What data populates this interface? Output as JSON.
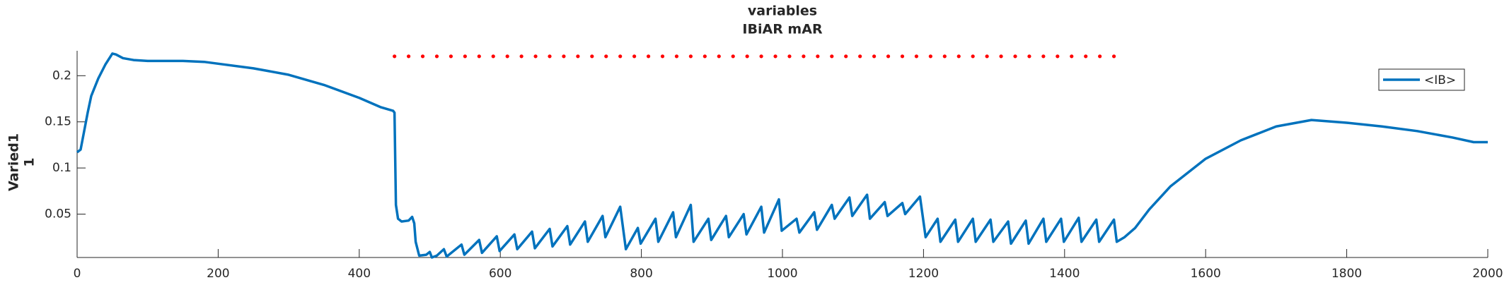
{
  "chart_data": {
    "type": "line",
    "title": [
      "variables",
      "IBiAR mAR"
    ],
    "ylabel": [
      "Varied1",
      "1"
    ],
    "xlim": [
      0,
      2000
    ],
    "ylim": [
      0.003,
      0.227
    ],
    "xticks": [
      0,
      200,
      400,
      600,
      800,
      1000,
      1200,
      1400,
      1600,
      1800,
      2000
    ],
    "yticks": [
      0.05,
      0.1,
      0.15,
      0.2
    ],
    "legend": "upper right",
    "series": [
      {
        "name": "<IB>",
        "color": "#0072bd",
        "style": "line",
        "x": [
          0,
          5,
          10,
          15,
          20,
          30,
          40,
          50,
          55,
          65,
          80,
          100,
          150,
          180,
          200,
          250,
          300,
          350,
          400,
          430,
          448,
          450,
          452,
          455,
          460,
          470,
          475,
          478,
          480,
          485,
          495,
          500,
          503,
          510,
          520,
          524,
          545,
          549,
          570,
          574,
          595,
          599,
          620,
          624,
          645,
          649,
          670,
          674,
          695,
          699,
          720,
          724,
          745,
          749,
          770,
          778,
          795,
          799,
          820,
          824,
          845,
          849,
          870,
          874,
          895,
          899,
          920,
          924,
          945,
          949,
          970,
          974,
          995,
          999,
          1020,
          1024,
          1045,
          1049,
          1070,
          1074,
          1095,
          1099,
          1120,
          1124,
          1145,
          1149,
          1170,
          1174,
          1195,
          1203,
          1220,
          1224,
          1245,
          1249,
          1270,
          1274,
          1295,
          1299,
          1320,
          1324,
          1345,
          1349,
          1370,
          1374,
          1395,
          1399,
          1420,
          1424,
          1445,
          1449,
          1470,
          1474,
          1485,
          1500,
          1520,
          1550,
          1600,
          1650,
          1700,
          1750,
          1800,
          1850,
          1900,
          1950,
          1980,
          2000
        ],
        "values": [
          0.117,
          0.12,
          0.14,
          0.16,
          0.178,
          0.197,
          0.212,
          0.224,
          0.223,
          0.219,
          0.217,
          0.216,
          0.216,
          0.215,
          0.213,
          0.208,
          0.201,
          0.19,
          0.176,
          0.166,
          0.162,
          0.16,
          0.06,
          0.045,
          0.042,
          0.043,
          0.047,
          0.04,
          0.02,
          0.005,
          0.006,
          0.009,
          0.003,
          0.005,
          0.012,
          0.004,
          0.017,
          0.006,
          0.022,
          0.008,
          0.026,
          0.01,
          0.028,
          0.012,
          0.031,
          0.013,
          0.034,
          0.015,
          0.037,
          0.017,
          0.042,
          0.02,
          0.048,
          0.025,
          0.058,
          0.012,
          0.035,
          0.018,
          0.045,
          0.02,
          0.052,
          0.025,
          0.06,
          0.02,
          0.045,
          0.022,
          0.048,
          0.025,
          0.05,
          0.028,
          0.058,
          0.03,
          0.066,
          0.032,
          0.045,
          0.03,
          0.052,
          0.033,
          0.06,
          0.045,
          0.068,
          0.048,
          0.071,
          0.045,
          0.063,
          0.048,
          0.062,
          0.05,
          0.069,
          0.025,
          0.045,
          0.02,
          0.044,
          0.02,
          0.045,
          0.02,
          0.044,
          0.02,
          0.042,
          0.018,
          0.043,
          0.018,
          0.045,
          0.02,
          0.045,
          0.02,
          0.046,
          0.02,
          0.044,
          0.02,
          0.044,
          0.02,
          0.025,
          0.035,
          0.055,
          0.08,
          0.11,
          0.13,
          0.145,
          0.152,
          0.149,
          0.145,
          0.14,
          0.133,
          0.128,
          0.128
        ]
      },
      {
        "color": "#ff0000",
        "style": "dots",
        "x": [
          450,
          470,
          490,
          510,
          530,
          550,
          570,
          590,
          610,
          630,
          650,
          670,
          690,
          710,
          730,
          750,
          770,
          790,
          810,
          830,
          850,
          870,
          890,
          910,
          930,
          950,
          970,
          990,
          1010,
          1030,
          1050,
          1070,
          1090,
          1110,
          1130,
          1150,
          1170,
          1190,
          1210,
          1230,
          1250,
          1270,
          1290,
          1310,
          1330,
          1350,
          1370,
          1390,
          1410,
          1430,
          1450,
          1470
        ],
        "values": [
          0.221,
          0.221,
          0.221,
          0.221,
          0.221,
          0.221,
          0.221,
          0.221,
          0.221,
          0.221,
          0.221,
          0.221,
          0.221,
          0.221,
          0.221,
          0.221,
          0.221,
          0.221,
          0.221,
          0.221,
          0.221,
          0.221,
          0.221,
          0.221,
          0.221,
          0.221,
          0.221,
          0.221,
          0.221,
          0.221,
          0.221,
          0.221,
          0.221,
          0.221,
          0.221,
          0.221,
          0.221,
          0.221,
          0.221,
          0.221,
          0.221,
          0.221,
          0.221,
          0.221,
          0.221,
          0.221,
          0.221,
          0.221,
          0.221,
          0.221,
          0.221,
          0.221
        ]
      }
    ]
  }
}
